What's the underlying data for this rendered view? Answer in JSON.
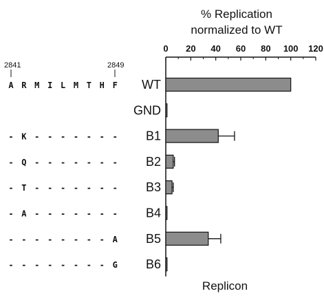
{
  "chart_data": {
    "type": "bar",
    "orientation": "horizontal",
    "title_line1": "% Replication",
    "title_line2": "normalized to WT",
    "xlabel": "Replicon",
    "xlim": [
      0,
      120
    ],
    "xticks": [
      "0",
      "20",
      "40",
      "60",
      "80",
      "100",
      "120"
    ],
    "categories": [
      "WT",
      "GND",
      "B1",
      "B2",
      "B3",
      "B4",
      "B5",
      "B6"
    ],
    "values": [
      100,
      1,
      42,
      6,
      5,
      1,
      34,
      1
    ],
    "errors": [
      0,
      0,
      13,
      1,
      1,
      0,
      10,
      0
    ],
    "bar_color": "#8c8c8c",
    "grid": false,
    "residue_start": "2841",
    "residue_end": "2849",
    "sequences": [
      "A R M I L M T H F",
      "",
      "- K - - - - - - -",
      "- Q - - - - - - -",
      "- T - - - - - - -",
      "- A - - - - - - -",
      "- - - - - - - - A",
      "- - - - - - - - G"
    ]
  }
}
